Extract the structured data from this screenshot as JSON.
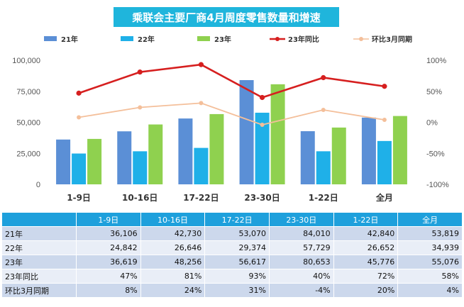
{
  "chart_data": {
    "type": "bar",
    "title": "乘联会主要厂商4月周度零售数量和增速",
    "categories": [
      "1-9日",
      "10-16日",
      "17-22日",
      "23-30日",
      "1-22日",
      "全月"
    ],
    "series": [
      {
        "name": "21年",
        "kind": "bar",
        "axis": "left",
        "color": "#5b8fd6",
        "values": [
          36106,
          42730,
          53070,
          84010,
          42840,
          53819
        ]
      },
      {
        "name": "22年",
        "kind": "bar",
        "axis": "left",
        "color": "#1fb0e8",
        "values": [
          24842,
          26646,
          29374,
          57729,
          26652,
          34939
        ]
      },
      {
        "name": "23年",
        "kind": "bar",
        "axis": "left",
        "color": "#8fd14f",
        "values": [
          36619,
          48256,
          56617,
          80653,
          45776,
          55076
        ]
      },
      {
        "name": "23年同比",
        "kind": "line",
        "axis": "right",
        "color": "#d61f1f",
        "values": [
          47,
          81,
          93,
          40,
          72,
          58
        ]
      },
      {
        "name": "环比3月同期",
        "kind": "line",
        "axis": "right",
        "color": "#f4bf9a",
        "values": [
          8,
          24,
          31,
          -4,
          20,
          4
        ]
      }
    ],
    "y_left": {
      "min": 0,
      "max": 100000,
      "ticks": [
        "0",
        "25,000",
        "50,000",
        "75,000",
        "100,000"
      ]
    },
    "y_right": {
      "min": -100,
      "max": 100,
      "ticks": [
        "-100%",
        "-50%",
        "0%",
        "50%",
        "100%"
      ]
    },
    "grid": false,
    "legend_position": "top"
  },
  "table": {
    "columns": [
      "",
      "1-9日",
      "10-16日",
      "17-22日",
      "23-30日",
      "1-22日",
      "全月"
    ],
    "rows": [
      {
        "label": "21年",
        "cells": [
          "36,106",
          "42,730",
          "53,070",
          "84,010",
          "42,840",
          "53,819"
        ]
      },
      {
        "label": "22年",
        "cells": [
          "24,842",
          "26,646",
          "29,374",
          "57,729",
          "26,652",
          "34,939"
        ]
      },
      {
        "label": "23年",
        "cells": [
          "36,619",
          "48,256",
          "56,617",
          "80,653",
          "45,776",
          "55,076"
        ]
      },
      {
        "label": "23年同比",
        "cells": [
          "47%",
          "81%",
          "93%",
          "40%",
          "72%",
          "58%"
        ]
      },
      {
        "label": "环比3月同期",
        "cells": [
          "8%",
          "24%",
          "31%",
          "-4%",
          "20%",
          "4%"
        ]
      }
    ]
  }
}
